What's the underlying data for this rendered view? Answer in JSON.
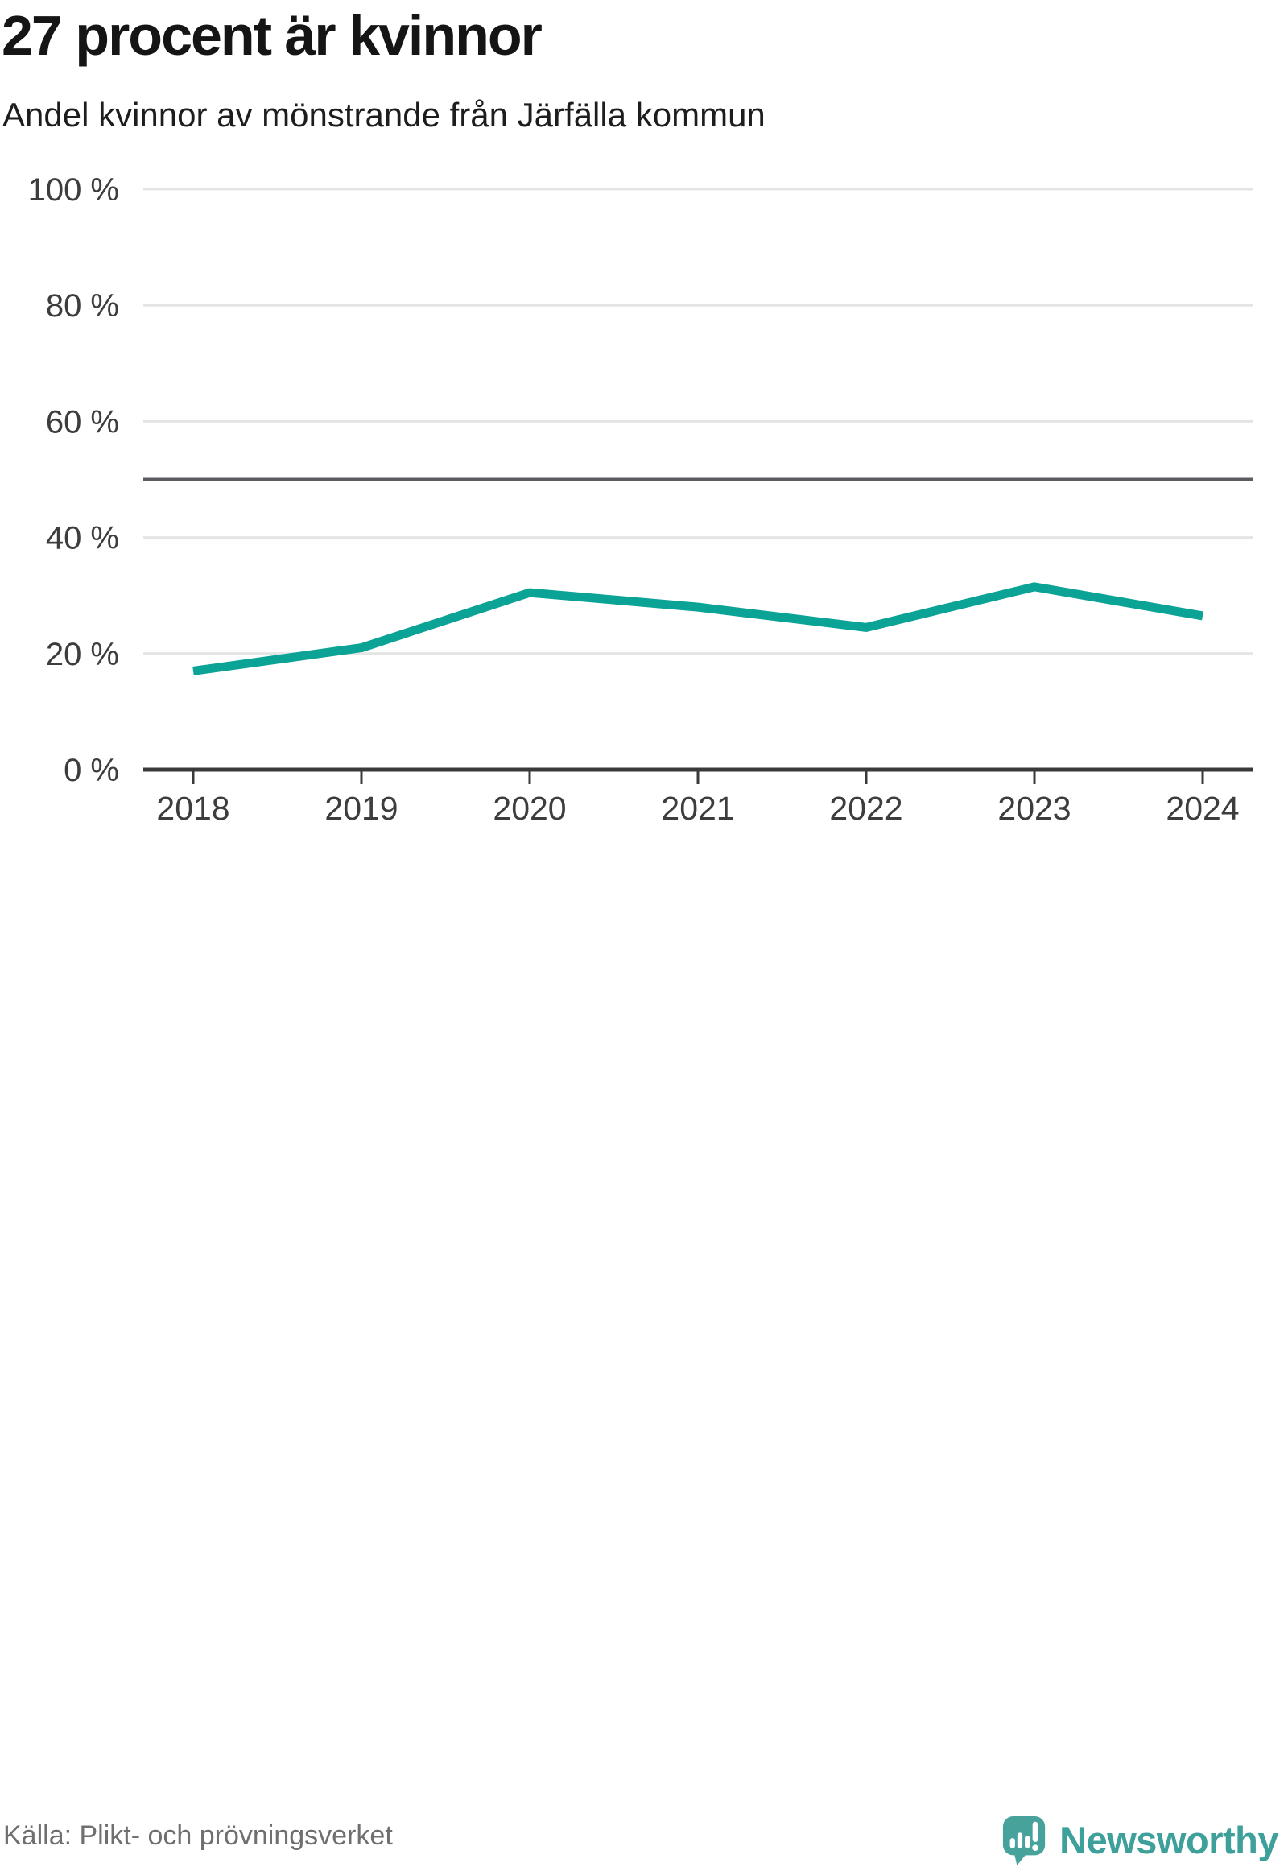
{
  "header": {
    "title": "27 procent är kvinnor",
    "subtitle": "Andel kvinnor av mönstrande från Järfälla kommun"
  },
  "footer": {
    "source": "Källa: Plikt- och prövningsverket",
    "brand_name": "Newsworthy"
  },
  "icons": {
    "logo": "newsworthy-speech-bubble-bar-chart-icon"
  },
  "colors": {
    "line": "#0aa396",
    "grid": "#e4e4e4",
    "reference_line": "#5b5b61",
    "axis": "#3a3a3a",
    "tick_label": "#3d3d3d",
    "brand": "#3da09a",
    "title_text": "#151515",
    "source_text": "#6f6f6f"
  },
  "chart_data": {
    "type": "line",
    "title": "27 procent är kvinnor",
    "subtitle": "Andel kvinnor av mönstrande från Järfälla kommun",
    "categories": [
      "2018",
      "2019",
      "2020",
      "2021",
      "2022",
      "2023",
      "2024"
    ],
    "series": [
      {
        "name": "Andel kvinnor av mönstrande, Järfälla kommun",
        "values": [
          17,
          21,
          30.5,
          28,
          24.5,
          31.5,
          26.5
        ]
      }
    ],
    "xlabel": "",
    "ylabel": "",
    "ylim": [
      0,
      100
    ],
    "yticks": [
      0,
      20,
      40,
      60,
      80,
      100
    ],
    "ytick_format": "{v} %",
    "reference_line": 50,
    "grid": "horizontal",
    "legend": "none",
    "unit": "%"
  }
}
